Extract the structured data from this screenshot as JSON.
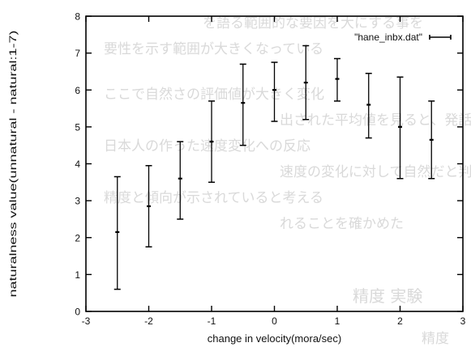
{
  "chart_data": {
    "type": "errorbar",
    "xlabel": "change in velocity(mora/sec)",
    "ylabel": "naturalness value(unnatural - natural:1-7)",
    "xlim": [
      -3,
      3
    ],
    "ylim": [
      0,
      8
    ],
    "xticks": [
      "-3",
      "-2",
      "-1",
      "0",
      "1",
      "2",
      "3"
    ],
    "yticks": [
      "0",
      "1",
      "2",
      "3",
      "4",
      "5",
      "6",
      "7",
      "8"
    ],
    "legend_position": "top-right",
    "grid": false,
    "series": [
      {
        "name": "\"hane_inbx.dat\"",
        "color": "#000000",
        "points": [
          {
            "x": -2.5,
            "y": 2.15,
            "low": 0.6,
            "high": 3.65
          },
          {
            "x": -2.0,
            "y": 2.85,
            "low": 1.75,
            "high": 3.95
          },
          {
            "x": -1.5,
            "y": 3.6,
            "low": 2.5,
            "high": 4.6
          },
          {
            "x": -1.0,
            "y": 4.6,
            "low": 3.5,
            "high": 5.7
          },
          {
            "x": -0.5,
            "y": 5.65,
            "low": 4.5,
            "high": 6.7
          },
          {
            "x": 0.0,
            "y": 6.0,
            "low": 5.15,
            "high": 6.75
          },
          {
            "x": 0.5,
            "y": 6.2,
            "low": 5.2,
            "high": 7.2
          },
          {
            "x": 1.0,
            "y": 6.3,
            "low": 5.7,
            "high": 6.85
          },
          {
            "x": 1.5,
            "y": 5.6,
            "low": 4.7,
            "high": 6.45
          },
          {
            "x": 2.0,
            "y": 5.0,
            "low": 3.6,
            "high": 6.35
          },
          {
            "x": 2.5,
            "y": 4.65,
            "low": 3.6,
            "high": 5.7
          }
        ]
      }
    ]
  },
  "background_text": [
    "を語る範囲的な要因を大にする事を",
    "要性を示す範囲が大きくなっている",
    "ここで自然さの評価値が大きく変化",
    "出された平均値を見ると、発話",
    "日本人の作った速度変化への反応",
    "速度の変化に対して自然だと判断",
    "精度と傾向が示されていると考える",
    "れることを確かめた",
    "精度 実験",
    "精度"
  ]
}
